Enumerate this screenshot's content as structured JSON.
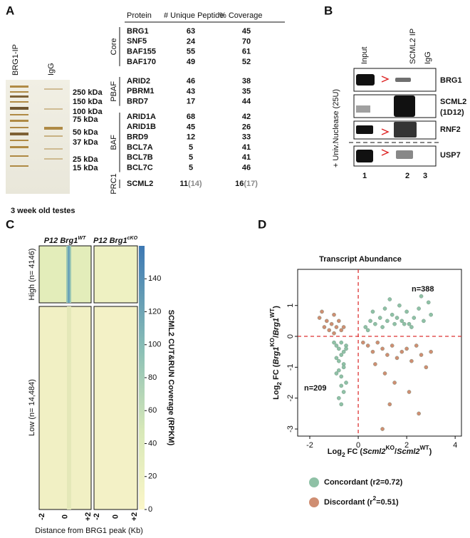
{
  "panel_a": {
    "letter": "A",
    "lanes": [
      "BRG1-IP",
      "IgG"
    ],
    "markers": [
      "250 kDa",
      "150 kDa",
      "100 kDa",
      "75 kDa",
      "50 kDa",
      "37 kDa",
      "25 kDa",
      "15 kDa"
    ],
    "caption": "3 week old testes",
    "table": {
      "headers": [
        "Protein",
        "# Unique Peptide",
        "% Coverage"
      ],
      "groups": [
        {
          "name": "Core",
          "rows": [
            {
              "protein": "BRG1",
              "peptides": 63,
              "coverage": 45
            },
            {
              "protein": "SNF5",
              "peptides": 24,
              "coverage": 70
            },
            {
              "protein": "BAF155",
              "peptides": 55,
              "coverage": 61
            },
            {
              "protein": "BAF170",
              "peptides": 49,
              "coverage": 52
            }
          ]
        },
        {
          "name": "PBAF",
          "rows": [
            {
              "protein": "ARID2",
              "peptides": 46,
              "coverage": 38
            },
            {
              "protein": "PBRM1",
              "peptides": 43,
              "coverage": 35
            },
            {
              "protein": "BRD7",
              "peptides": 17,
              "coverage": 44
            }
          ]
        },
        {
          "name": "BAF",
          "rows": [
            {
              "protein": "ARID1A",
              "peptides": 68,
              "coverage": 42
            },
            {
              "protein": "ARID1B",
              "peptides": 45,
              "coverage": 26
            },
            {
              "protein": "BRD9",
              "peptides": 12,
              "coverage": 33
            },
            {
              "protein": "BCL7A",
              "peptides": 5,
              "coverage": 41
            },
            {
              "protein": "BCL7B",
              "peptides": 5,
              "coverage": 41
            },
            {
              "protein": "BCL7C",
              "peptides": 5,
              "coverage": 46
            }
          ]
        },
        {
          "name": "PRC1",
          "rows": [
            {
              "protein": "SCML2",
              "peptides": 11,
              "peptides_alt": {
                "value": 14,
                "label": "(14)"
              },
              "coverage": 16,
              "coverage_alt": {
                "value": 17,
                "label": "(17)"
              }
            }
          ]
        }
      ]
    }
  },
  "panel_b": {
    "letter": "B",
    "lanes": [
      "Input",
      "SCML2 IP",
      "IgG"
    ],
    "treatment": "+ Univ.Nuclease (25U)",
    "blots": [
      {
        "label": "BRG1"
      },
      {
        "label": "SCML2",
        "sublabel": "(1D12)"
      },
      {
        "label": "RNF2"
      },
      {
        "label": "USP7"
      }
    ],
    "lane_numbers": [
      1,
      2,
      3
    ]
  },
  "panel_c": {
    "letter": "C",
    "columns": [
      [
        {
          "text": "P12 Brg1"
        },
        {
          "text": "WT",
          "style": "sup"
        }
      ],
      [
        {
          "text": "P12 Brg1"
        },
        {
          "text": "cKO",
          "style": "sup"
        }
      ]
    ],
    "rows": [
      "High (n= 4146)",
      "Low (n= 14,484)"
    ],
    "colorbar": {
      "label": "SCML2 CUT&RUN Coverage (RPKM)",
      "lim": [
        0,
        160
      ],
      "ticks": [
        0,
        20,
        40,
        60,
        80,
        100,
        120,
        140
      ]
    },
    "xticks": [
      -2,
      0,
      {
        "value": 2,
        "label": "+2"
      }
    ],
    "xlabel": "Distance from BRG1 peak (Kb)"
  },
  "panel_d": {
    "letter": "D",
    "chart_data": {
      "type": "scatter",
      "title": "Transcript Abundance",
      "xlabel": [
        {
          "text": "Log"
        },
        {
          "text": "2",
          "style": "sub"
        },
        {
          "text": " FC ("
        },
        {
          "text": "Scml2",
          "style": "italic"
        },
        {
          "text": "KO",
          "style": "sup"
        },
        {
          "text": "/"
        },
        {
          "text": "Scml2",
          "style": "italic"
        },
        {
          "text": "WT",
          "style": "sup"
        },
        {
          "text": ")"
        }
      ],
      "ylabel": [
        {
          "text": "Log"
        },
        {
          "text": "2",
          "style": "sub"
        },
        {
          "text": " FC ("
        },
        {
          "text": "Brg1",
          "style": "italic"
        },
        {
          "text": "KO",
          "style": "sup"
        },
        {
          "text": "/"
        },
        {
          "text": "Brg1",
          "style": "italic"
        },
        {
          "text": "WT",
          "style": "sup"
        },
        {
          "text": ")"
        }
      ],
      "xlim": [
        -2.5,
        4.26
      ],
      "ylim": [
        -3.23,
        2.17
      ],
      "xticks": [
        -2,
        0,
        2,
        4
      ],
      "yticks": [
        -3,
        -2,
        -1,
        0,
        1
      ],
      "hline": 0,
      "vline": 0,
      "annotations": [
        "n=388",
        "n=209"
      ],
      "series": [
        {
          "name": [
            {
              "text": "Concordant (r2=0.72)"
            }
          ],
          "color": "#8fc1a6",
          "x": [
            0.3,
            0.5,
            0.7,
            0.9,
            1.0,
            1.2,
            1.4,
            1.5,
            1.6,
            1.8,
            2.0,
            2.1,
            2.3,
            2.5,
            2.7,
            2.9,
            3.0,
            0.6,
            1.1,
            1.7,
            2.2,
            2.6,
            0.4,
            1.3,
            1.9,
            -1.0,
            -0.9,
            -0.8,
            -0.7,
            -0.6,
            -0.5,
            -0.9,
            -0.8,
            -0.7,
            -0.6,
            -0.5,
            -0.8,
            -0.7,
            -0.6,
            -0.9,
            -0.7,
            -0.6,
            -0.8,
            -0.5,
            -0.7
          ],
          "y": [
            0.3,
            0.5,
            0.4,
            0.6,
            0.3,
            0.5,
            0.7,
            0.4,
            0.6,
            0.5,
            0.8,
            0.4,
            0.6,
            0.9,
            0.5,
            1.1,
            0.7,
            0.8,
            0.9,
            1.0,
            0.3,
            1.3,
            0.2,
            1.2,
            0.4,
            -0.2,
            -0.3,
            -0.4,
            -0.2,
            -0.5,
            -0.3,
            -0.7,
            -0.8,
            -0.6,
            -0.9,
            -0.4,
            -1.1,
            -1.3,
            -1.0,
            -1.2,
            -1.6,
            -1.8,
            -2.0,
            -1.5,
            -2.2
          ]
        },
        {
          "name": [
            {
              "text": "Discordant (r"
            },
            {
              "text": "2",
              "style": "sup"
            },
            {
              "text": "=0.51)"
            }
          ],
          "color": "#cf8e72",
          "x": [
            -1.6,
            -1.4,
            -1.3,
            -1.2,
            -1.1,
            -1.0,
            -0.9,
            -0.8,
            -0.7,
            -1.5,
            -1.0,
            -0.6,
            0.2,
            0.4,
            0.6,
            0.8,
            1.0,
            1.2,
            1.4,
            1.6,
            1.8,
            2.0,
            2.2,
            2.4,
            2.6,
            2.8,
            3.0,
            0.7,
            1.1,
            1.5,
            1.3,
            2.1,
            1.0,
            2.5
          ],
          "y": [
            0.6,
            0.3,
            0.5,
            0.2,
            0.4,
            0.7,
            0.3,
            0.5,
            0.2,
            0.8,
            0.1,
            0.3,
            -0.2,
            -0.3,
            -0.5,
            -0.2,
            -0.4,
            -0.6,
            -0.3,
            -0.7,
            -0.5,
            -0.4,
            -0.8,
            -0.3,
            -0.6,
            -1.0,
            -0.5,
            -0.9,
            -1.2,
            -1.5,
            -2.2,
            -1.8,
            -3.0,
            -2.5
          ]
        }
      ]
    }
  }
}
